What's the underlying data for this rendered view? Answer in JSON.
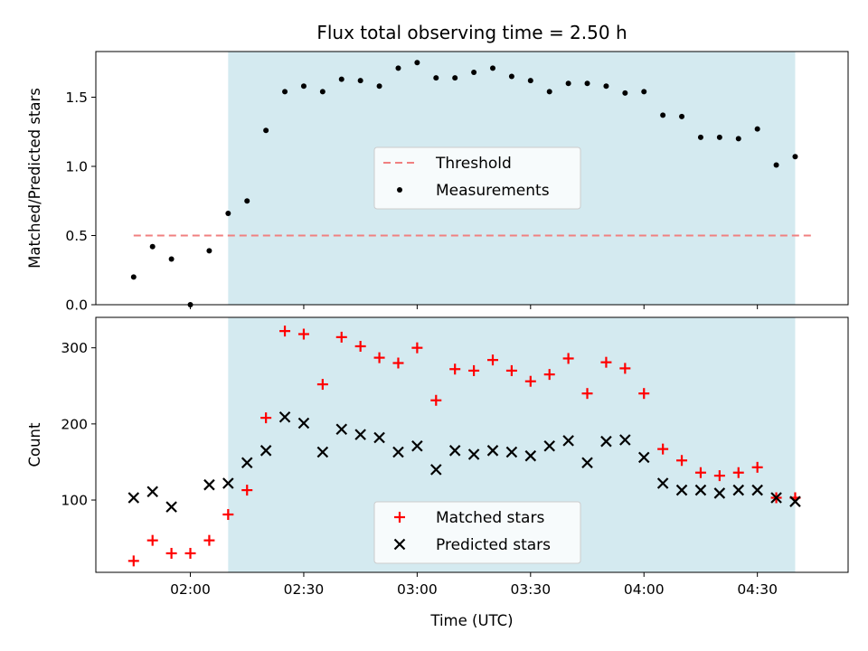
{
  "chart_data": {
    "type": "scatter",
    "title": "Flux total observing time = 2.50 h",
    "xlabel": "Time (UTC)",
    "x_tick_labels": [
      "02:00",
      "02:30",
      "03:00",
      "03:30",
      "04:00",
      "04:30"
    ],
    "x_ticks_minutes": [
      120,
      150,
      180,
      210,
      240,
      270
    ],
    "xlim_minutes": [
      95,
      294
    ],
    "observing_window_minutes": [
      130,
      280
    ],
    "window_color": "#d4eaf0",
    "panels": [
      {
        "ylabel": "Matched/Predicted stars",
        "ylim": [
          0,
          1.83
        ],
        "yticks": [
          0.0,
          0.5,
          1.0,
          1.5
        ],
        "ytick_labels": [
          "0.0",
          "0.5",
          "1.0",
          "1.5"
        ],
        "legend": {
          "position": "center",
          "entries": [
            "Threshold",
            "Measurements"
          ]
        },
        "series": [
          {
            "name": "Threshold",
            "kind": "line",
            "style": "dashed",
            "color": "#f08080",
            "x": [
              105,
              285
            ],
            "y": [
              0.5,
              0.5
            ]
          },
          {
            "name": "Measurements",
            "kind": "dot",
            "color": "#000000",
            "x": [
              105,
              110,
              115,
              120,
              125,
              130,
              135,
              140,
              145,
              150,
              155,
              160,
              165,
              170,
              175,
              180,
              185,
              190,
              195,
              200,
              205,
              210,
              215,
              220,
              225,
              230,
              235,
              240,
              245,
              250,
              255,
              260,
              265,
              270,
              275,
              280
            ],
            "y": [
              0.2,
              0.42,
              0.33,
              0.0,
              0.39,
              0.66,
              0.75,
              1.26,
              1.54,
              1.58,
              1.54,
              1.63,
              1.62,
              1.58,
              1.71,
              1.75,
              1.64,
              1.64,
              1.68,
              1.71,
              1.65,
              1.62,
              1.54,
              1.6,
              1.6,
              1.58,
              1.53,
              1.54,
              1.37,
              1.36,
              1.21,
              1.21,
              1.2,
              1.27,
              1.01,
              1.07
            ]
          }
        ]
      },
      {
        "ylabel": "Count",
        "ylim": [
          5,
          340
        ],
        "yticks": [
          100,
          200,
          300
        ],
        "ytick_labels": [
          "100",
          "200",
          "300"
        ],
        "legend": {
          "position": "lower center",
          "entries": [
            "Matched stars",
            "Predicted stars"
          ]
        },
        "series": [
          {
            "name": "Matched stars",
            "kind": "plus",
            "color": "#ff0000",
            "x": [
              105,
              110,
              115,
              120,
              125,
              130,
              135,
              140,
              145,
              150,
              155,
              160,
              165,
              170,
              175,
              180,
              185,
              190,
              195,
              200,
              205,
              210,
              215,
              220,
              225,
              230,
              235,
              240,
              245,
              250,
              255,
              260,
              265,
              270,
              275,
              280
            ],
            "y": [
              20,
              47,
              30,
              30,
              47,
              81,
              113,
              208,
              322,
              318,
              252,
              314,
              302,
              287,
              280,
              300,
              231,
              272,
              270,
              284,
              270,
              256,
              265,
              286,
              240,
              281,
              273,
              240,
              167,
              152,
              136,
              132,
              136,
              143,
              103,
              103
            ]
          },
          {
            "name": "Predicted stars",
            "kind": "x",
            "color": "#000000",
            "x": [
              105,
              110,
              115,
              125,
              130,
              135,
              140,
              145,
              150,
              155,
              160,
              165,
              170,
              175,
              180,
              185,
              190,
              195,
              200,
              205,
              210,
              215,
              220,
              225,
              230,
              235,
              240,
              245,
              250,
              255,
              260,
              265,
              270,
              275,
              280
            ],
            "y": [
              103,
              111,
              91,
              120,
              122,
              149,
              165,
              209,
              201,
              163,
              193,
              186,
              182,
              163,
              171,
              140,
              165,
              160,
              165,
              163,
              158,
              171,
              178,
              149,
              177,
              179,
              156,
              122,
              113,
              113,
              109,
              113,
              113,
              103,
              98
            ]
          }
        ]
      }
    ]
  }
}
